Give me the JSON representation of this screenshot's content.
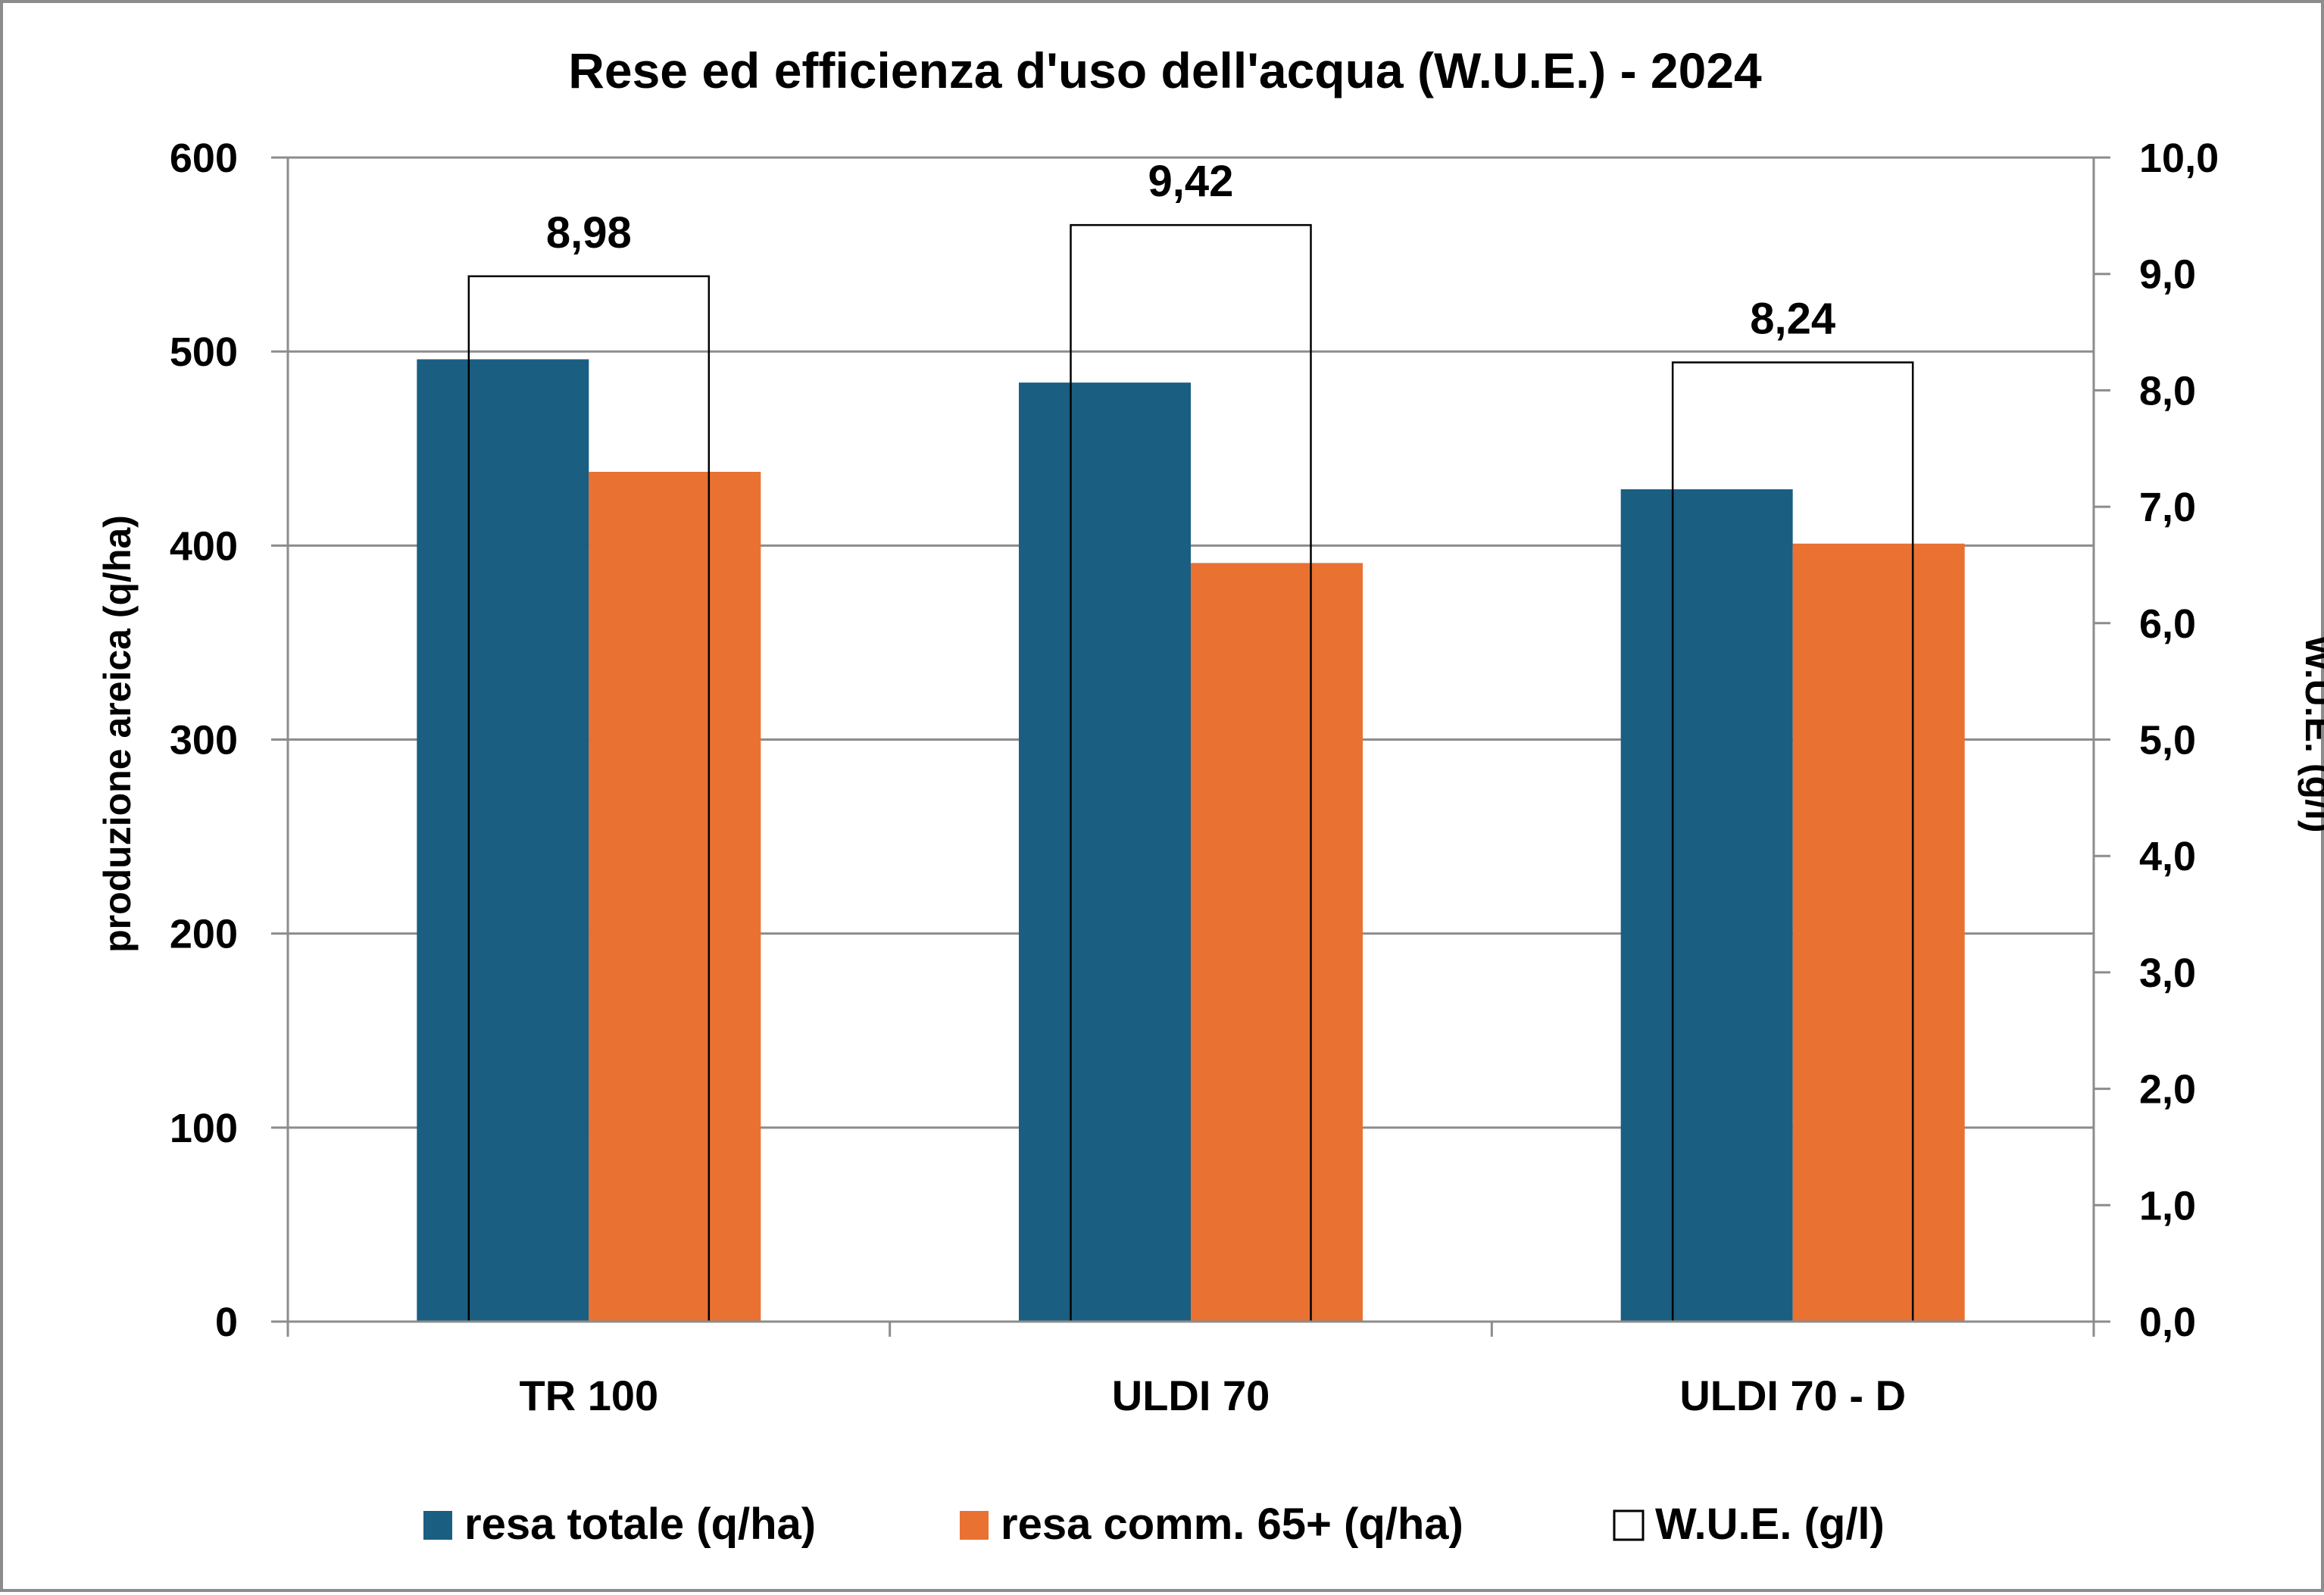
{
  "chart_data": {
    "type": "bar",
    "title": "Rese ed efficienza d'uso dell'acqua (W.U.E.) - 2024",
    "ylabel": "produzione areica (q/ha)",
    "y2label": "W.U.E. (g/l)",
    "ylim": [
      0,
      600
    ],
    "y2lim": [
      0,
      10
    ],
    "yticks": [
      "0",
      "100",
      "200",
      "300",
      "400",
      "500",
      "600"
    ],
    "y2ticks": [
      "0,0",
      "1,0",
      "2,0",
      "3,0",
      "4,0",
      "5,0",
      "6,0",
      "7,0",
      "8,0",
      "9,0",
      "10,0"
    ],
    "categories": [
      "TR 100",
      "ULDI 70",
      "ULDI 70 - D"
    ],
    "grid": true,
    "legend_position": "bottom",
    "series": [
      {
        "name": "resa totale (q/ha)",
        "axis": "left",
        "color": "#1a5e82",
        "values": [
          496,
          484,
          429
        ]
      },
      {
        "name": "resa comm. 65+ (q/ha)",
        "axis": "left",
        "color": "#e97132",
        "values": [
          438,
          391,
          401
        ]
      },
      {
        "name": "W.U.E. (g/l)",
        "axis": "right",
        "color": "#ffffff",
        "outline": "#000000",
        "values": [
          8.98,
          9.42,
          8.24
        ],
        "labels": [
          "8,98",
          "9,42",
          "8,24"
        ]
      }
    ]
  }
}
